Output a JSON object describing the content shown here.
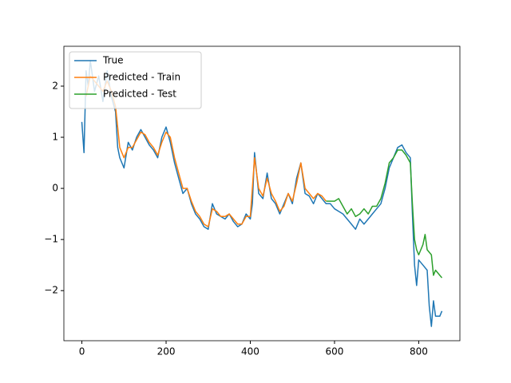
{
  "chart_data": {
    "type": "line",
    "series": [
      {
        "name": "True",
        "color": "#1f77b4",
        "x": [
          0,
          5,
          10,
          15,
          20,
          30,
          40,
          50,
          60,
          70,
          80,
          85,
          90,
          100,
          110,
          120,
          130,
          140,
          150,
          160,
          170,
          180,
          190,
          200,
          210,
          220,
          230,
          240,
          250,
          260,
          270,
          280,
          290,
          300,
          310,
          320,
          330,
          340,
          350,
          360,
          370,
          380,
          390,
          400,
          405,
          410,
          420,
          430,
          440,
          450,
          460,
          470,
          480,
          490,
          500,
          510,
          520,
          530,
          540,
          550,
          560,
          570,
          580,
          590,
          600,
          610,
          620,
          630,
          640,
          650,
          660,
          670,
          680,
          690,
          700,
          710,
          720,
          730,
          740,
          750,
          760,
          770,
          780,
          785,
          790,
          795,
          800,
          810,
          820,
          825,
          830,
          835,
          840,
          850,
          855
        ],
        "values": [
          1.3,
          0.7,
          2.3,
          2.0,
          2.5,
          1.9,
          2.2,
          1.7,
          2.3,
          1.8,
          1.5,
          0.8,
          0.6,
          0.4,
          0.9,
          0.75,
          1.0,
          1.15,
          1.0,
          0.85,
          0.75,
          0.6,
          1.0,
          1.2,
          0.9,
          0.5,
          0.2,
          -0.1,
          0.0,
          -0.3,
          -0.5,
          -0.6,
          -0.75,
          -0.8,
          -0.3,
          -0.5,
          -0.55,
          -0.6,
          -0.5,
          -0.65,
          -0.75,
          -0.7,
          -0.5,
          -0.6,
          -0.3,
          0.7,
          -0.1,
          -0.2,
          0.3,
          -0.2,
          -0.3,
          -0.5,
          -0.3,
          -0.1,
          -0.3,
          0.2,
          0.5,
          -0.1,
          -0.15,
          -0.3,
          -0.1,
          -0.2,
          -0.3,
          -0.3,
          -0.4,
          -0.45,
          -0.5,
          -0.6,
          -0.7,
          -0.8,
          -0.6,
          -0.7,
          -0.6,
          -0.5,
          -0.4,
          -0.3,
          0.0,
          0.4,
          0.6,
          0.8,
          0.85,
          0.7,
          0.6,
          -0.5,
          -1.5,
          -1.9,
          -1.4,
          -1.5,
          -1.6,
          -2.3,
          -2.7,
          -2.2,
          -2.5,
          -2.5,
          -2.4
        ]
      },
      {
        "name": "Predicted - Train",
        "color": "#ff7f0e",
        "x": [
          10,
          20,
          30,
          40,
          50,
          60,
          70,
          80,
          90,
          100,
          110,
          120,
          130,
          140,
          150,
          160,
          170,
          180,
          190,
          200,
          210,
          220,
          230,
          240,
          250,
          260,
          270,
          280,
          290,
          300,
          310,
          320,
          330,
          340,
          350,
          360,
          370,
          380,
          390,
          400,
          410,
          420,
          430,
          440,
          450,
          460,
          470,
          480,
          490,
          500,
          510,
          520,
          530,
          540,
          550,
          560,
          570,
          580
        ],
        "values": [
          1.8,
          2.2,
          2.1,
          2.0,
          1.9,
          2.1,
          1.9,
          1.6,
          0.8,
          0.6,
          0.8,
          0.8,
          0.95,
          1.1,
          1.05,
          0.9,
          0.8,
          0.65,
          0.9,
          1.1,
          1.0,
          0.6,
          0.3,
          0.0,
          0.0,
          -0.25,
          -0.45,
          -0.55,
          -0.7,
          -0.75,
          -0.4,
          -0.45,
          -0.55,
          -0.55,
          -0.5,
          -0.6,
          -0.7,
          -0.7,
          -0.55,
          -0.55,
          0.6,
          0.0,
          -0.15,
          0.2,
          -0.1,
          -0.25,
          -0.45,
          -0.35,
          -0.1,
          -0.25,
          0.1,
          0.5,
          0.0,
          -0.1,
          -0.2,
          -0.1,
          -0.15,
          -0.25
        ]
      },
      {
        "name": "Predicted - Test",
        "color": "#2ca02c",
        "x": [
          580,
          600,
          610,
          620,
          630,
          640,
          650,
          660,
          670,
          680,
          690,
          700,
          710,
          720,
          730,
          740,
          750,
          760,
          770,
          780,
          785,
          790,
          795,
          800,
          810,
          815,
          820,
          830,
          835,
          840,
          850,
          855
        ],
        "values": [
          -0.25,
          -0.25,
          -0.2,
          -0.35,
          -0.5,
          -0.4,
          -0.55,
          -0.5,
          -0.4,
          -0.5,
          -0.35,
          -0.35,
          -0.2,
          0.1,
          0.5,
          0.6,
          0.75,
          0.75,
          0.65,
          0.5,
          -0.3,
          -1.0,
          -1.2,
          -1.3,
          -1.1,
          -0.9,
          -1.2,
          -1.3,
          -1.7,
          -1.6,
          -1.7,
          -1.75
        ]
      }
    ],
    "xlim": [
      -42.75,
      897.75
    ],
    "xticks": [
      0,
      200,
      400,
      600,
      800
    ],
    "ylim": [
      -2.98,
      2.78
    ],
    "yticks": [
      {
        "value": -2,
        "label": "−2"
      },
      {
        "value": -1,
        "label": "−1"
      },
      0,
      1,
      2
    ],
    "legend": "upper left",
    "grid": false
  }
}
